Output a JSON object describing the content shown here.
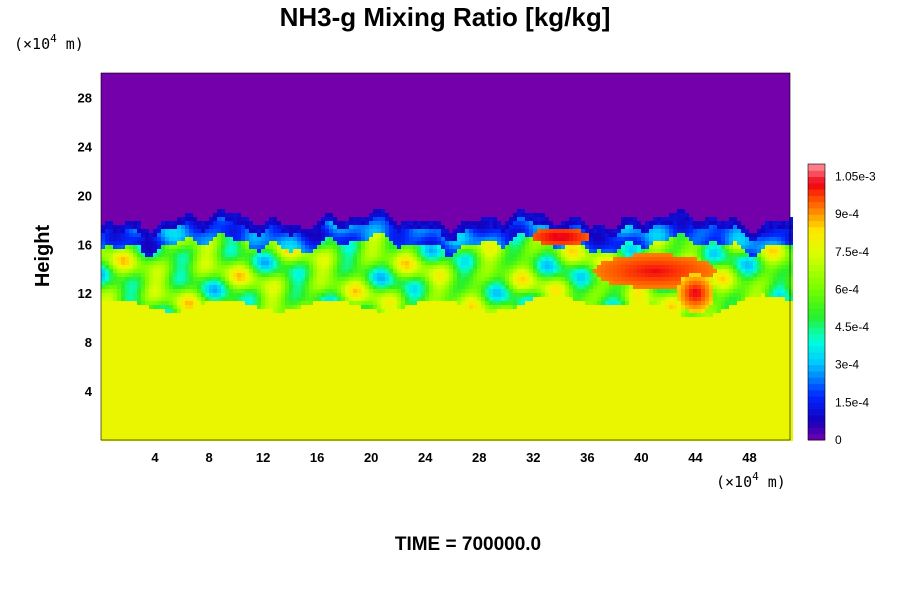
{
  "chart_data": {
    "type": "heatmap",
    "title": "NH3-g Mixing Ratio [kg/kg]",
    "ylabel": "Height",
    "x_unit_base": "(×10",
    "x_unit_exp": "4",
    "x_unit_tail": " m)",
    "y_unit_base": "(×10",
    "y_unit_exp": "4",
    "y_unit_tail": " m)",
    "x_ticks": [
      4,
      8,
      12,
      16,
      20,
      24,
      28,
      32,
      36,
      40,
      44,
      48
    ],
    "y_ticks": [
      4,
      8,
      12,
      16,
      20,
      24,
      28
    ],
    "xlim": [
      0,
      51
    ],
    "ylim": [
      0,
      30
    ],
    "colorbar": {
      "min": 0,
      "max": 0.0011,
      "tick_values": [
        0,
        0.00015,
        0.0003,
        0.00045,
        0.0006,
        0.00075,
        0.0009,
        0.00105
      ],
      "tick_labels": [
        "0",
        "1.5e-4",
        "3e-4",
        "4.5e-4",
        "6e-4",
        "7.5e-4",
        "9e-4",
        "1.05e-3"
      ]
    },
    "field_summary": {
      "lower_layer_value": 0.00078,
      "upper_layer_value": 0,
      "cloud_top_height": 18,
      "cloud_bottom_height": 11,
      "peak_value": 0.00105,
      "peak_location": [
        44,
        11.5
      ]
    },
    "time_label": "TIME = 700000.0"
  },
  "colors": {
    "background": "#ffffff",
    "upper_layer": "#7300aa",
    "lower_layer": "#ddff00"
  }
}
